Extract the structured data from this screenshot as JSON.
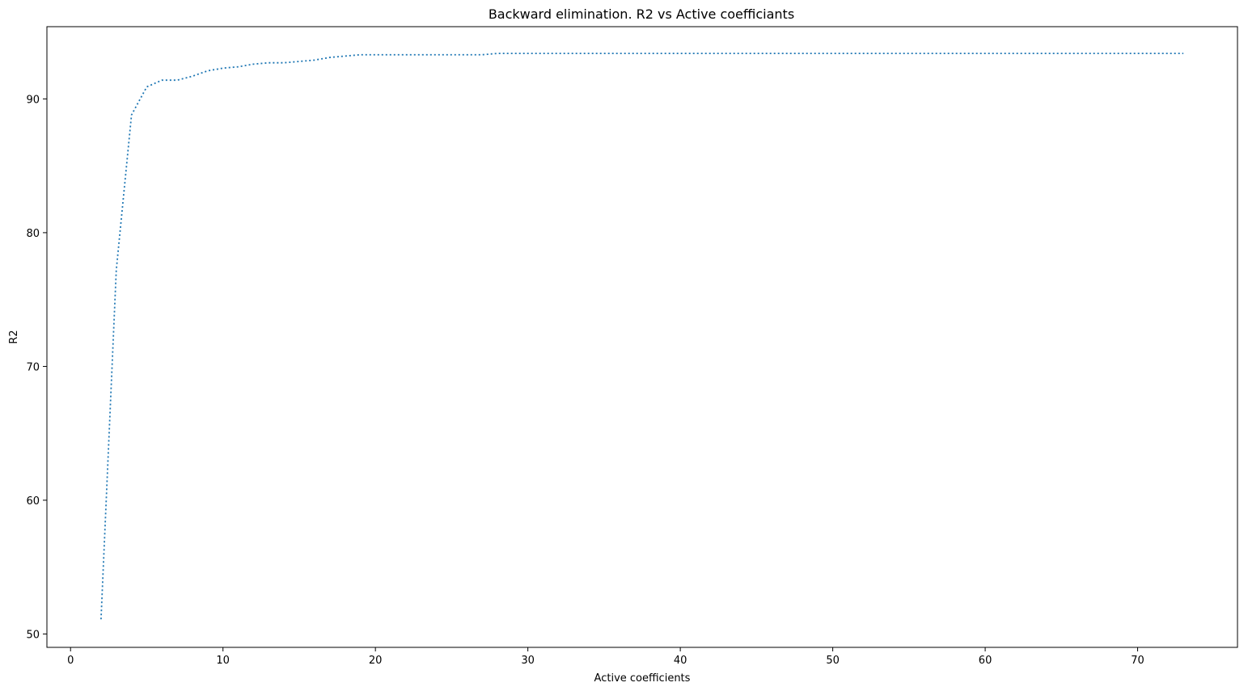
{
  "chart_data": {
    "type": "line",
    "title": "Backward elimination. R2 vs Active coefficiants",
    "xlabel": "Active coefficients",
    "ylabel": "R2",
    "xlim": [
      -1.55,
      76.55
    ],
    "ylim": [
      49.0,
      95.4
    ],
    "xticks": [
      0,
      10,
      20,
      30,
      40,
      50,
      60,
      70
    ],
    "yticks": [
      50,
      60,
      70,
      80,
      90
    ],
    "grid": false,
    "line_style": "dotted",
    "line_color": "#1f77b4",
    "series": [
      {
        "x": [
          2,
          3,
          4,
          5,
          6,
          7,
          8,
          9,
          10,
          11,
          12,
          13,
          14,
          15,
          16,
          17,
          18,
          19,
          20,
          21,
          22,
          23,
          24,
          25,
          26,
          27,
          28,
          29,
          30,
          31,
          32,
          33,
          34,
          35,
          36,
          37,
          38,
          39,
          40,
          41,
          42,
          43,
          44,
          45,
          46,
          47,
          48,
          49,
          50,
          51,
          52,
          53,
          54,
          55,
          56,
          57,
          58,
          59,
          60,
          61,
          62,
          63,
          64,
          65,
          66,
          67,
          68,
          69,
          70,
          71,
          72,
          73
        ],
        "y": [
          51.1,
          77.2,
          88.8,
          90.9,
          91.4,
          91.4,
          91.7,
          92.1,
          92.3,
          92.4,
          92.6,
          92.7,
          92.7,
          92.8,
          92.9,
          93.1,
          93.2,
          93.3,
          93.3,
          93.3,
          93.3,
          93.3,
          93.3,
          93.3,
          93.3,
          93.3,
          93.4,
          93.4,
          93.4,
          93.4,
          93.4,
          93.4,
          93.4,
          93.4,
          93.4,
          93.4,
          93.4,
          93.4,
          93.4,
          93.4,
          93.4,
          93.4,
          93.4,
          93.4,
          93.4,
          93.4,
          93.4,
          93.4,
          93.4,
          93.4,
          93.4,
          93.4,
          93.4,
          93.4,
          93.4,
          93.4,
          93.4,
          93.4,
          93.4,
          93.4,
          93.4,
          93.4,
          93.4,
          93.4,
          93.4,
          93.4,
          93.4,
          93.4,
          93.4,
          93.4,
          93.4,
          93.4
        ]
      }
    ]
  }
}
